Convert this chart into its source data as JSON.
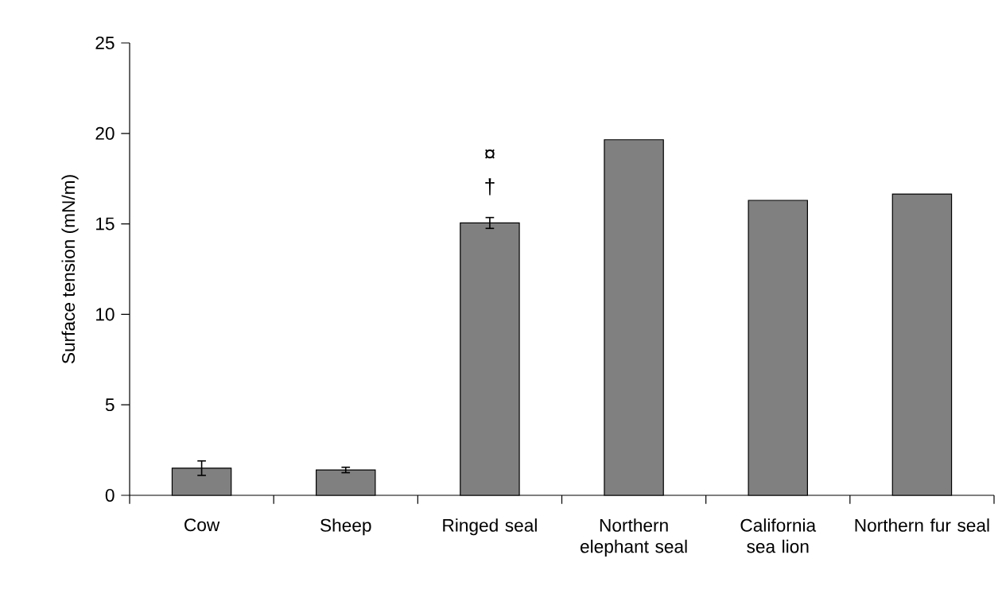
{
  "chart_data": {
    "type": "bar",
    "ylabel": "Surface tension (mN/m)",
    "categories": [
      "Cow",
      "Sheep",
      "Ringed seal",
      "Northern elephant seal",
      "California sea lion",
      "Northern fur seal"
    ],
    "values": [
      1.5,
      1.4,
      15.05,
      19.65,
      16.3,
      16.65
    ],
    "errors": [
      0.4,
      0.15,
      0.3,
      null,
      null,
      null
    ],
    "color": "#808080",
    "ylim": [
      0,
      25
    ],
    "yticks": [
      0,
      5,
      10,
      15,
      20,
      25
    ],
    "grid": false,
    "annotations": [
      "¤",
      "†"
    ]
  }
}
